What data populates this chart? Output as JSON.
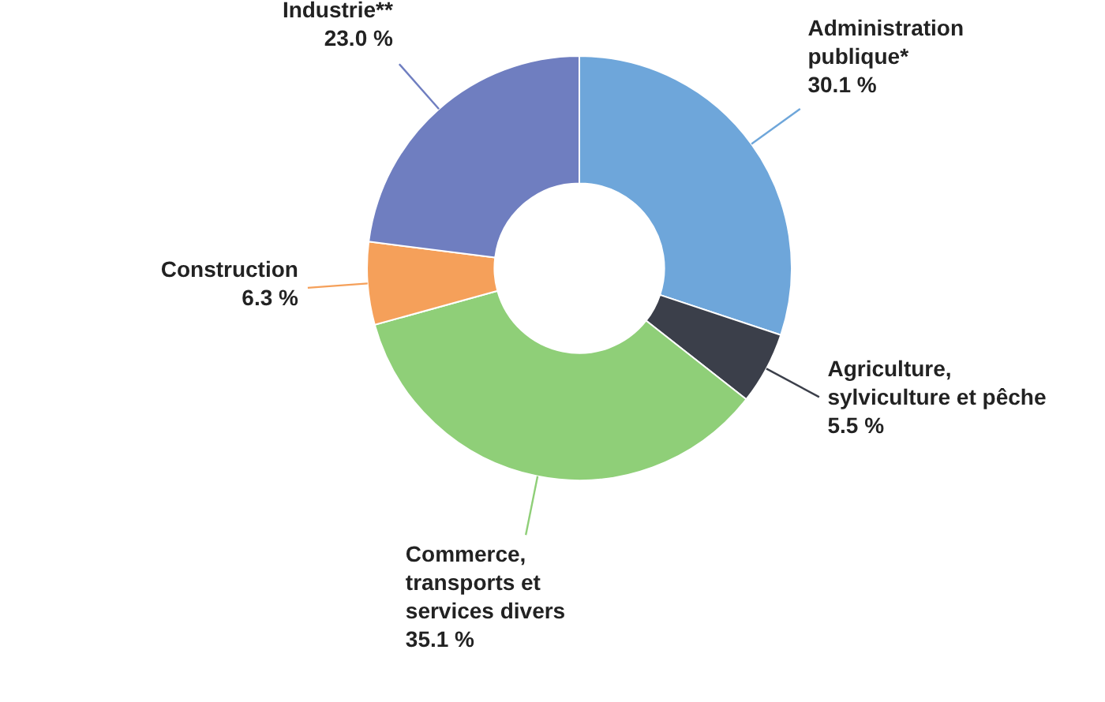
{
  "chart_data": {
    "type": "donut",
    "categories": [
      "Administration publique*",
      "Agriculture, sylviculture et pêche",
      "Commerce, transports et services divers",
      "Construction",
      "Industrie**"
    ],
    "values": [
      30.1,
      5.5,
      35.1,
      6.3,
      23.0
    ],
    "value_labels": [
      "30.1 %",
      "5.5 %",
      "35.1 %",
      "6.3 %",
      "23.0 %"
    ],
    "colors": [
      "#6ea6da",
      "#3b3f4a",
      "#8fcf78",
      "#f5a05a",
      "#6f7ec0"
    ],
    "legend": false
  }
}
